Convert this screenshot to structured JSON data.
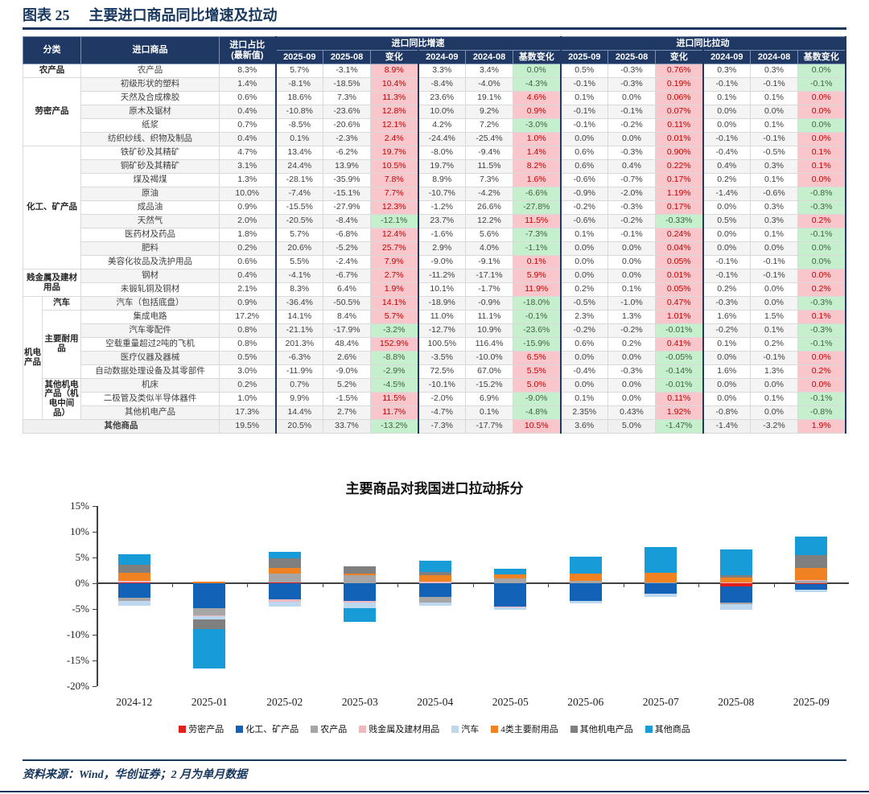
{
  "figure": {
    "label": "图表 25",
    "title": "主要进口商品同比增速及拉动"
  },
  "source": "资料来源：Wind，华创证券；2 月为单月数据",
  "colors": {
    "navy": "#1F3864",
    "title_text": "#17375E",
    "body_text": "#3F3F3F",
    "pink_bg": "#F9C7CB",
    "pink_text": "#C00000",
    "green_bg": "#C6EFCE",
    "green_text": "#41603F",
    "band_bg": "#F4F4F4",
    "border": "#D9D9D9"
  },
  "table": {
    "header": {
      "col_category": "分类",
      "col_commodity": "进口商品",
      "col_share": "进口占比\n(最新值)",
      "group_growth": "进口同比增速",
      "group_pull": "进口同比拉动",
      "sub_columns": [
        "2025-09",
        "2025-08",
        "变化",
        "2024-09",
        "2024-08",
        "基数变化"
      ]
    },
    "rows": [
      {
        "cat": [
          "农产品",
          1,
          2
        ],
        "name": "农产品",
        "c": [
          "8.3%",
          "5.7%",
          "-3.1%",
          "8.9%",
          "3.3%",
          "3.4%",
          "0.0%",
          "0.5%",
          "-0.3%",
          "0.76%",
          "0.3%",
          "0.3%",
          "0.0%"
        ],
        "k": "pgpg"
      },
      {
        "cat": [
          "劳密产品",
          5,
          2
        ],
        "name": "初级形状的塑料",
        "band": true,
        "c": [
          "1.4%",
          "-8.1%",
          "-18.5%",
          "10.4%",
          "-8.4%",
          "-4.0%",
          "-4.3%",
          "-0.1%",
          "-0.3%",
          "0.19%",
          "-0.1%",
          "-0.1%",
          "-0.1%"
        ],
        "k": "pgpg"
      },
      {
        "name": "天然及合成橡胶",
        "c": [
          "0.6%",
          "18.6%",
          "7.3%",
          "11.3%",
          "23.6%",
          "19.1%",
          "4.6%",
          "0.1%",
          "0.0%",
          "0.06%",
          "0.1%",
          "0.1%",
          "0.0%"
        ],
        "k": "pppp"
      },
      {
        "name": "原木及锯材",
        "band": true,
        "c": [
          "0.4%",
          "-10.8%",
          "-23.6%",
          "12.8%",
          "10.0%",
          "9.2%",
          "0.9%",
          "-0.1%",
          "-0.1%",
          "0.07%",
          "0.0%",
          "0.0%",
          "0.0%"
        ],
        "k": "pppp"
      },
      {
        "name": "纸浆",
        "c": [
          "0.7%",
          "-8.5%",
          "-20.6%",
          "12.1%",
          "4.2%",
          "7.2%",
          "-3.0%",
          "-0.1%",
          "-0.2%",
          "0.11%",
          "0.0%",
          "0.1%",
          "0.0%"
        ],
        "k": "pgpg"
      },
      {
        "name": "纺织纱线、织物及制品",
        "band": true,
        "c": [
          "0.4%",
          "0.1%",
          "-2.3%",
          "2.4%",
          "-24.4%",
          "-25.4%",
          "1.0%",
          "0.0%",
          "0.0%",
          "0.01%",
          "-0.1%",
          "-0.1%",
          "0.0%"
        ],
        "k": "pppp"
      },
      {
        "cat": [
          "化工、矿产品",
          9,
          2
        ],
        "name": "铁矿砂及其精矿",
        "c": [
          "4.7%",
          "13.4%",
          "-6.2%",
          "19.7%",
          "-8.0%",
          "-9.4%",
          "1.4%",
          "0.6%",
          "-0.3%",
          "0.90%",
          "-0.4%",
          "-0.5%",
          "0.1%"
        ],
        "k": "pppp"
      },
      {
        "name": "铜矿砂及其精矿",
        "band": true,
        "c": [
          "3.1%",
          "24.4%",
          "13.9%",
          "10.5%",
          "19.7%",
          "11.5%",
          "8.2%",
          "0.6%",
          "0.4%",
          "0.22%",
          "0.4%",
          "0.3%",
          "0.1%"
        ],
        "k": "pppp"
      },
      {
        "name": "煤及褐煤",
        "c": [
          "1.3%",
          "-28.1%",
          "-35.9%",
          "7.8%",
          "8.9%",
          "7.3%",
          "1.6%",
          "-0.6%",
          "-0.7%",
          "0.17%",
          "0.2%",
          "0.1%",
          "0.0%"
        ],
        "k": "pppp"
      },
      {
        "name": "原油",
        "band": true,
        "c": [
          "10.0%",
          "-7.4%",
          "-15.1%",
          "7.7%",
          "-10.7%",
          "-4.2%",
          "-6.6%",
          "-0.9%",
          "-2.0%",
          "1.19%",
          "-1.4%",
          "-0.6%",
          "-0.8%"
        ],
        "k": "pgpg"
      },
      {
        "name": "成品油",
        "c": [
          "0.9%",
          "-15.5%",
          "-27.9%",
          "12.3%",
          "-1.2%",
          "26.6%",
          "-27.8%",
          "-0.2%",
          "-0.3%",
          "0.17%",
          "0.0%",
          "0.3%",
          "-0.3%"
        ],
        "k": "pgpg"
      },
      {
        "name": "天然气",
        "band": true,
        "c": [
          "2.0%",
          "-20.5%",
          "-8.4%",
          "-12.1%",
          "23.7%",
          "12.2%",
          "11.5%",
          "-0.6%",
          "-0.2%",
          "-0.33%",
          "0.5%",
          "0.3%",
          "0.2%"
        ],
        "k": "gpgp"
      },
      {
        "name": "医药材及药品",
        "c": [
          "1.8%",
          "5.7%",
          "-6.8%",
          "12.4%",
          "-1.6%",
          "5.6%",
          "-7.3%",
          "0.1%",
          "-0.1%",
          "0.24%",
          "0.0%",
          "0.1%",
          "-0.1%"
        ],
        "k": "pgpg"
      },
      {
        "name": "肥料",
        "band": true,
        "c": [
          "0.2%",
          "20.6%",
          "-5.2%",
          "25.7%",
          "2.9%",
          "4.0%",
          "-1.1%",
          "0.0%",
          "0.0%",
          "0.04%",
          "0.0%",
          "0.0%",
          "0.0%"
        ],
        "k": "pgpg"
      },
      {
        "name": "美容化妆品及洗护用品",
        "c": [
          "0.6%",
          "5.5%",
          "-2.4%",
          "7.9%",
          "-9.0%",
          "-9.1%",
          "0.1%",
          "0.0%",
          "0.0%",
          "0.05%",
          "-0.1%",
          "-0.1%",
          "0.0%"
        ],
        "k": "pppg"
      },
      {
        "cat": [
          "贱金属及建材用品",
          2,
          2
        ],
        "name": "钢材",
        "band": true,
        "c": [
          "0.4%",
          "-4.1%",
          "-6.7%",
          "2.7%",
          "-11.2%",
          "-17.1%",
          "5.9%",
          "0.0%",
          "0.0%",
          "0.01%",
          "-0.1%",
          "-0.1%",
          "0.0%"
        ],
        "k": "pppp"
      },
      {
        "name": "未锻轧铜及铜材",
        "c": [
          "2.1%",
          "8.3%",
          "6.4%",
          "1.9%",
          "10.1%",
          "-1.7%",
          "11.9%",
          "0.2%",
          "0.1%",
          "0.05%",
          "0.2%",
          "0.0%",
          "0.2%"
        ],
        "k": "pppp"
      },
      {
        "cat": [
          "机电产品",
          9,
          1
        ],
        "sub": [
          "汽车",
          1
        ],
        "name": "汽车（包括底盘）",
        "band": true,
        "c": [
          "0.9%",
          "-36.4%",
          "-50.5%",
          "14.1%",
          "-18.9%",
          "-0.9%",
          "-18.0%",
          "-0.5%",
          "-1.0%",
          "0.47%",
          "-0.3%",
          "0.0%",
          "-0.3%"
        ],
        "k": "pgpg"
      },
      {
        "sub": [
          "主要耐用品",
          5
        ],
        "name": "集成电路",
        "c": [
          "17.2%",
          "14.1%",
          "8.4%",
          "5.7%",
          "11.0%",
          "11.1%",
          "-0.1%",
          "2.3%",
          "1.3%",
          "1.01%",
          "1.6%",
          "1.5%",
          "0.1%"
        ],
        "k": "pgpp"
      },
      {
        "name": "汽车零配件",
        "band": true,
        "c": [
          "0.8%",
          "-21.1%",
          "-17.9%",
          "-3.2%",
          "-12.7%",
          "10.9%",
          "-23.6%",
          "-0.2%",
          "-0.2%",
          "-0.01%",
          "-0.2%",
          "0.1%",
          "-0.3%"
        ],
        "k": "gggg"
      },
      {
        "name": "空载重量超过2吨的飞机",
        "c": [
          "0.8%",
          "201.3%",
          "48.4%",
          "152.9%",
          "100.5%",
          "116.4%",
          "-15.9%",
          "0.6%",
          "0.2%",
          "0.41%",
          "0.1%",
          "0.2%",
          "-0.1%"
        ],
        "k": "pgpg"
      },
      {
        "name": "医疗仪器及器械",
        "band": true,
        "c": [
          "0.5%",
          "-6.3%",
          "2.6%",
          "-8.8%",
          "-3.5%",
          "-10.0%",
          "6.5%",
          "0.0%",
          "0.0%",
          "-0.05%",
          "0.0%",
          "-0.1%",
          "0.0%"
        ],
        "k": "gpgp"
      },
      {
        "name": "自动数据处理设备及其零部件",
        "c": [
          "3.0%",
          "-11.9%",
          "-9.0%",
          "-2.9%",
          "72.5%",
          "67.0%",
          "5.5%",
          "-0.4%",
          "-0.3%",
          "-0.14%",
          "1.6%",
          "1.3%",
          "0.2%"
        ],
        "k": "gpgp"
      },
      {
        "sub": [
          "其他机电产品（机电中间品）",
          3
        ],
        "name": "机床",
        "tall": true,
        "band": true,
        "c": [
          "0.2%",
          "0.7%",
          "5.2%",
          "-4.5%",
          "-10.1%",
          "-15.2%",
          "5.0%",
          "0.0%",
          "0.0%",
          "-0.01%",
          "0.0%",
          "0.0%",
          "0.0%"
        ],
        "k": "gpgp"
      },
      {
        "name": "二极管及类似半导体器件",
        "c": [
          "1.0%",
          "9.9%",
          "-1.5%",
          "11.5%",
          "-2.0%",
          "6.9%",
          "-9.0%",
          "0.1%",
          "0.0%",
          "0.11%",
          "0.0%",
          "0.1%",
          "-0.1%"
        ],
        "k": "pgpg"
      },
      {
        "name": "其他机电产品",
        "band": true,
        "c": [
          "17.3%",
          "14.4%",
          "2.7%",
          "11.7%",
          "-4.7%",
          "0.1%",
          "-4.8%",
          "2.35%",
          "0.43%",
          "1.92%",
          "-0.8%",
          "0.0%",
          "-0.8%"
        ],
        "k": "pgpg"
      },
      {
        "footer": true,
        "name": "其他商品",
        "c": [
          "19.5%",
          "20.5%",
          "33.7%",
          "-13.2%",
          "-7.3%",
          "-17.7%",
          "10.5%",
          "3.6%",
          "5.0%",
          "-1.47%",
          "-1.4%",
          "-3.2%",
          "1.9%"
        ],
        "k": "gpgp"
      }
    ]
  },
  "chart_data": {
    "type": "bar",
    "stacked": true,
    "title": "主要商品对我国进口拉动拆分",
    "unit": "%",
    "categories": [
      "2024-12",
      "2025-01",
      "2025-02",
      "2025-03",
      "2025-04",
      "2025-05",
      "2025-06",
      "2025-07",
      "2025-08",
      "2025-09"
    ],
    "ylim": [
      -20,
      15
    ],
    "yticks": [
      15,
      10,
      5,
      0,
      -5,
      -10,
      -15,
      -20
    ],
    "grid": false,
    "legend_position": "bottom",
    "series": [
      {
        "name": "劳密产品",
        "color": "#E0201C",
        "values": [
          0.2,
          0.0,
          0.2,
          0.0,
          0.0,
          0.0,
          0.0,
          0.0,
          -0.6,
          -0.2
        ]
      },
      {
        "name": "化工、矿产品",
        "color": "#1262B8",
        "values": [
          -2.8,
          -4.8,
          -3.2,
          -3.5,
          -2.6,
          -4.6,
          -3.4,
          -2.1,
          -3.2,
          -1.0
        ]
      },
      {
        "name": "农产品",
        "color": "#A6A6A6",
        "values": [
          -0.7,
          -1.5,
          1.6,
          1.5,
          -1.1,
          1.0,
          0.5,
          0.1,
          -0.3,
          0.5
        ]
      },
      {
        "name": "贱金属及建材用品",
        "color": "#F0B8BE",
        "values": [
          0.3,
          -0.1,
          -0.4,
          -0.3,
          0.3,
          -0.1,
          0.0,
          0.0,
          0.1,
          0.2
        ]
      },
      {
        "name": "汽车",
        "color": "#BDD7EE",
        "values": [
          -0.8,
          -0.7,
          -1.0,
          -1.0,
          -0.7,
          -0.5,
          -0.5,
          -0.5,
          -1.0,
          -0.5
        ]
      },
      {
        "name": "4类主要耐用品",
        "color": "#F08222",
        "values": [
          1.5,
          0.3,
          1.2,
          0.4,
          1.2,
          0.7,
          1.4,
          1.9,
          1.0,
          2.3
        ]
      },
      {
        "name": "其他机电产品",
        "color": "#7F7F7F",
        "values": [
          1.6,
          -1.8,
          1.8,
          1.4,
          0.7,
          0.0,
          0.0,
          0.0,
          0.4,
          2.5
        ]
      },
      {
        "name": "其他商品",
        "color": "#189CD8",
        "values": [
          2.1,
          -7.7,
          1.3,
          -2.7,
          2.2,
          1.1,
          3.3,
          5.1,
          5.0,
          3.6
        ]
      }
    ]
  }
}
